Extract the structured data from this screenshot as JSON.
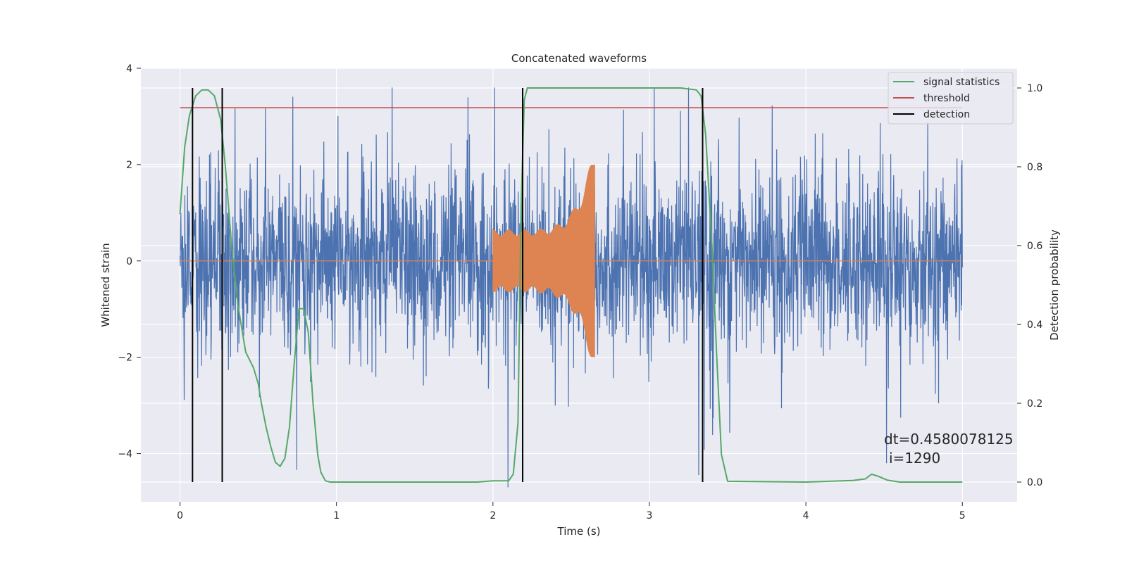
{
  "chart_data": {
    "type": "line",
    "title": "Concatenated waveforms",
    "xlabel": "Time (s)",
    "ylabel": "Whitened strain",
    "y2label": "Detection probability",
    "xlim": [
      -0.25,
      5.35
    ],
    "ylim": [
      -5.0,
      4.0
    ],
    "y2lim": [
      -0.05,
      1.05
    ],
    "xticks": [
      0,
      1,
      2,
      3,
      4,
      5
    ],
    "yticks": [
      -4,
      -2,
      0,
      2,
      4
    ],
    "y2ticks": [
      0.0,
      0.2,
      0.4,
      0.6,
      0.8,
      1.0
    ],
    "ytick_labels": [
      "−4",
      "−2",
      "0",
      "2",
      "4"
    ],
    "y2tick_labels": [
      "0.0",
      "0.2",
      "0.4",
      "0.6",
      "0.8",
      "1.0"
    ],
    "grid": true,
    "legend_position": "top-right",
    "colors": {
      "strain": "#4c72b0",
      "template": "#dd8452",
      "statistic": "#55a868",
      "threshold": "#c44e52",
      "detection": "#000000",
      "background": "#eaeaf2"
    },
    "series": [
      {
        "name": "signal statistics",
        "axis": "right",
        "x": [
          0.0,
          0.03,
          0.06,
          0.1,
          0.14,
          0.18,
          0.22,
          0.26,
          0.29,
          0.33,
          0.37,
          0.42,
          0.47,
          0.5,
          0.52,
          0.55,
          0.58,
          0.61,
          0.64,
          0.67,
          0.7,
          0.73,
          0.76,
          0.79,
          0.82,
          0.85,
          0.88,
          0.9,
          0.93,
          0.96,
          1.0,
          1.5,
          1.9,
          2.0,
          2.1,
          2.13,
          2.16,
          2.18,
          2.2,
          2.22,
          2.25,
          3.0,
          3.2,
          3.3,
          3.33,
          3.36,
          3.4,
          3.43,
          3.46,
          3.5,
          4.0,
          4.3,
          4.38,
          4.42,
          4.46,
          4.52,
          4.6,
          5.0
        ],
        "values": [
          0.68,
          0.85,
          0.93,
          0.98,
          0.995,
          0.995,
          0.98,
          0.92,
          0.8,
          0.6,
          0.45,
          0.33,
          0.29,
          0.25,
          0.2,
          0.14,
          0.09,
          0.05,
          0.04,
          0.06,
          0.14,
          0.3,
          0.44,
          0.44,
          0.38,
          0.2,
          0.07,
          0.025,
          0.003,
          0.0,
          0.0,
          0.0,
          0.0,
          0.003,
          0.003,
          0.02,
          0.15,
          0.7,
          0.97,
          1.0,
          1.0,
          1.0,
          1.0,
          0.995,
          0.98,
          0.88,
          0.6,
          0.32,
          0.07,
          0.002,
          0.0,
          0.004,
          0.008,
          0.02,
          0.015,
          0.005,
          0.0,
          0.0
        ]
      },
      {
        "name": "threshold",
        "axis": "right",
        "x": [
          0.0,
          5.0
        ],
        "values": [
          0.95,
          0.95
        ]
      },
      {
        "name": "detection",
        "axis": "right",
        "x": [
          0.08,
          0.27,
          2.19,
          3.34
        ],
        "values": [
          1.0,
          1.0,
          1.0,
          1.0
        ]
      }
    ],
    "strain": {
      "x_range": [
        0.0,
        5.0
      ],
      "typical_amplitude": 1.0,
      "peak_range": [
        -4.7,
        3.6
      ]
    },
    "template": {
      "x_range": [
        2.0,
        2.65
      ],
      "start_amplitude": 0.65,
      "end_amplitude": 2.4
    },
    "annotation": {
      "line1": "dt=0.4580078125",
      "line2": "i=1290"
    }
  }
}
